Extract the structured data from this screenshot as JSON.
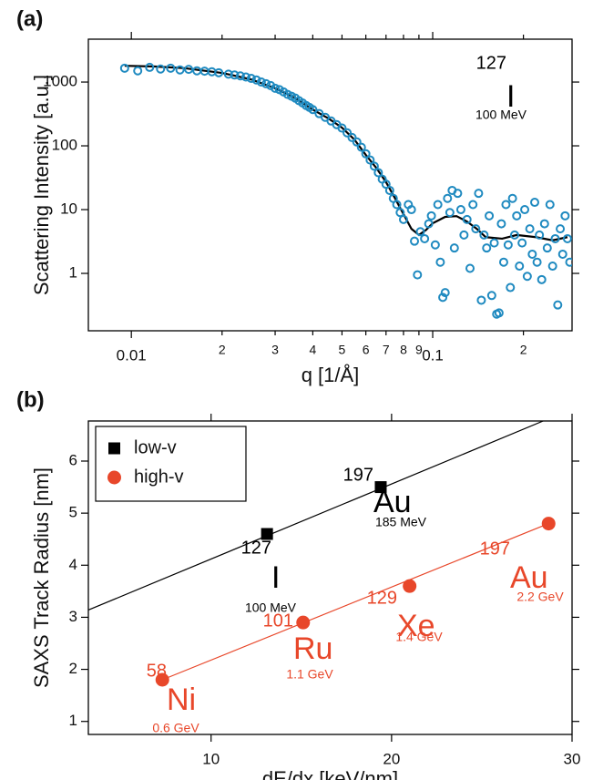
{
  "chart_data": [
    {
      "type": "scatter",
      "panel_label": "(a)",
      "x_label": "q [1/Å]",
      "y_label": "Scattering Intensity [a.u.]",
      "xscale": "log",
      "yscale": "log",
      "xlim": [
        0.0072,
        0.29
      ],
      "ylim": [
        0.126,
        4700
      ],
      "xticks": [
        0.01,
        {
          "value": 0.02,
          "label": "2"
        },
        {
          "value": 0.03,
          "label": "3"
        },
        {
          "value": 0.04,
          "label": "4"
        },
        {
          "value": 0.05,
          "label": "5"
        },
        {
          "value": 0.06,
          "label": "6"
        },
        {
          "value": 0.07,
          "label": "7"
        },
        {
          "value": 0.08,
          "label": "8"
        },
        {
          "value": 0.09,
          "label": "9"
        },
        0.1,
        {
          "value": 0.2,
          "label": "2"
        }
      ],
      "yticks": [
        1,
        10,
        100,
        1000
      ],
      "series": [
        {
          "color": "#1f8ac0",
          "marker": "open-circle",
          "x": [
            0.0095,
            0.0105,
            0.0115,
            0.0125,
            0.0135,
            0.0145,
            0.0155,
            0.0165,
            0.0175,
            0.0185,
            0.0195,
            0.021,
            0.022,
            0.023,
            0.024,
            0.025,
            0.026,
            0.027,
            0.028,
            0.029,
            0.03,
            0.031,
            0.032,
            0.033,
            0.034,
            0.035,
            0.036,
            0.037,
            0.038,
            0.039,
            0.04,
            0.042,
            0.044,
            0.046,
            0.048,
            0.05,
            0.052,
            0.054,
            0.056,
            0.058,
            0.06,
            0.062,
            0.064,
            0.066,
            0.068,
            0.07,
            0.072,
            0.074,
            0.076,
            0.078,
            0.08,
            0.083,
            0.085,
            0.087,
            0.089,
            0.091,
            0.094,
            0.097,
            0.099,
            0.102,
            0.104,
            0.106,
            0.108,
            0.11,
            0.112,
            0.114,
            0.116,
            0.118,
            0.121,
            0.124,
            0.127,
            0.13,
            0.133,
            0.136,
            0.139,
            0.142,
            0.145,
            0.148,
            0.151,
            0.154,
            0.157,
            0.16,
            0.163,
            0.166,
            0.169,
            0.172,
            0.175,
            0.178,
            0.181,
            0.184,
            0.187,
            0.19,
            0.194,
            0.198,
            0.202,
            0.206,
            0.21,
            0.214,
            0.218,
            0.222,
            0.226,
            0.23,
            0.235,
            0.24,
            0.245,
            0.25,
            0.255,
            0.26,
            0.265,
            0.27,
            0.275,
            0.28,
            0.285
          ],
          "values": [
            1650,
            1500,
            1700,
            1600,
            1650,
            1550,
            1580,
            1500,
            1480,
            1450,
            1400,
            1330,
            1290,
            1250,
            1200,
            1140,
            1080,
            1000,
            940,
            880,
            800,
            760,
            700,
            640,
            600,
            560,
            510,
            470,
            430,
            400,
            370,
            320,
            280,
            245,
            215,
            190,
            160,
            135,
            115,
            95,
            75,
            60,
            48,
            38,
            30,
            25,
            20,
            15,
            12,
            9,
            7,
            12,
            10,
            3.2,
            0.95,
            4.5,
            3.5,
            6,
            8,
            2.8,
            12,
            1.5,
            0.42,
            0.5,
            15,
            9,
            20,
            2.5,
            18,
            10,
            4,
            7,
            1.2,
            12,
            5,
            18,
            0.38,
            4,
            2.5,
            8,
            0.45,
            3,
            0.23,
            0.24,
            6,
            1.5,
            12,
            2.8,
            0.6,
            15,
            4,
            8,
            1.3,
            3,
            10,
            0.9,
            5,
            2,
            13,
            1.5,
            4,
            0.8,
            6,
            2.5,
            12,
            1.3,
            3.5,
            0.32,
            5,
            2,
            8,
            3.5,
            1.5
          ]
        },
        {
          "color": "#000000",
          "marker": "line",
          "x": [
            0.0095,
            0.012,
            0.015,
            0.02,
            0.025,
            0.03,
            0.035,
            0.04,
            0.045,
            0.05,
            0.055,
            0.06,
            0.065,
            0.07,
            0.075,
            0.08,
            0.085,
            0.09,
            0.095,
            0.1,
            0.11,
            0.12,
            0.13,
            0.14,
            0.15,
            0.17,
            0.19,
            0.22,
            0.25,
            0.28
          ],
          "values": [
            1800,
            1750,
            1650,
            1390,
            1100,
            800,
            560,
            370,
            270,
            193,
            125,
            72,
            45,
            27,
            15,
            8.5,
            5,
            4,
            4.8,
            6.1,
            7.7,
            7.9,
            6.5,
            5,
            3.7,
            3.5,
            4,
            3.7,
            3.3,
            3.7
          ]
        }
      ],
      "annotations": [
        {
          "mass": "127",
          "element": "I",
          "energy": "100 MeV",
          "color": "#000000"
        }
      ]
    },
    {
      "type": "scatter",
      "panel_label": "(b)",
      "x_label": "dE/dx [keV/nm]",
      "y_label": "SAXS Track Radius [nm]",
      "xscale": "linear",
      "yscale": "linear",
      "xlim": [
        3.2,
        30
      ],
      "ylim": [
        0.75,
        6.77
      ],
      "xticks": [
        10,
        20,
        30
      ],
      "yticks": [
        1,
        2,
        3,
        4,
        5,
        6
      ],
      "legend": "top-left",
      "series": [
        {
          "name": "low-v",
          "color": "#000000",
          "marker": "square",
          "x": [
            13.1,
            19.4
          ],
          "values": [
            4.6,
            5.5
          ]
        },
        {
          "name": "high-v",
          "color": "#e8472a",
          "marker": "circle",
          "x": [
            7.3,
            15.1,
            21,
            28.7
          ],
          "values": [
            1.8,
            2.9,
            3.6,
            4.8
          ]
        },
        {
          "color": "#000000",
          "marker": "line",
          "x": [
            3.2,
            28.4
          ],
          "values": [
            3.14,
            6.77
          ]
        },
        {
          "color": "#e8472a",
          "marker": "line",
          "x": [
            7.3,
            28.7
          ],
          "values": [
            1.8,
            4.8
          ]
        }
      ],
      "annotations": [
        {
          "mass": "197",
          "element": "Au",
          "energy": "185 MeV",
          "color": "#000000"
        },
        {
          "mass": "127",
          "element": "I",
          "energy": "100 MeV",
          "color": "#000000"
        },
        {
          "mass": "58",
          "element": "Ni",
          "energy": "0.6 GeV",
          "color": "#e8472a"
        },
        {
          "mass": "101",
          "element": "Ru",
          "energy": "1.1 GeV",
          "color": "#e8472a"
        },
        {
          "mass": "129",
          "element": "Xe",
          "energy": "1.4 GeV",
          "color": "#e8472a"
        },
        {
          "mass": "197",
          "element": "Au",
          "energy": "2.2 GeV",
          "color": "#e8472a"
        }
      ]
    }
  ]
}
